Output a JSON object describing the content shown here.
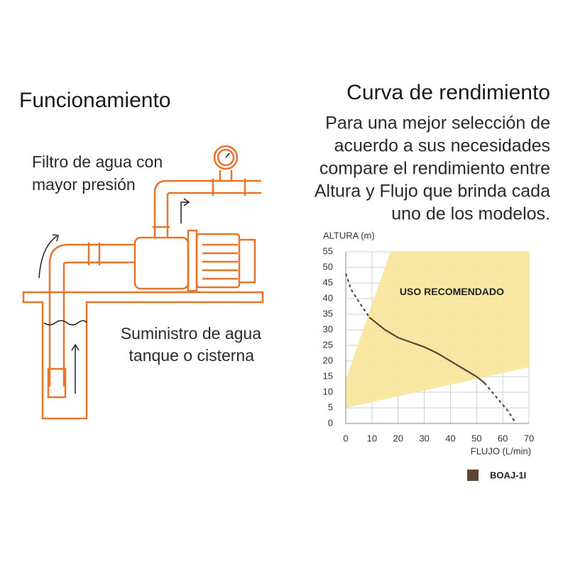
{
  "diagram": {
    "title": "Funcionamiento",
    "label_top": [
      "Filtro de agua con",
      "mayor presión"
    ],
    "label_bottom": [
      "Suministro de agua",
      "tanque o cisterna"
    ]
  },
  "panel": {
    "title": "Curva de rendimiento",
    "text": [
      "Para una mejor selección de",
      "acuerdo a sus necesidades",
      "compare el rendimiento entre",
      "Altura y Flujo que brinda cada",
      "uno de los modelos."
    ]
  },
  "chart_data": {
    "type": "line",
    "y_label": "ALTURA (m)",
    "x_label": "FLUJO (L/min)",
    "xlim": [
      0,
      70
    ],
    "xticks": [
      0,
      10,
      20,
      30,
      40,
      50,
      60,
      70
    ],
    "ylim": [
      0,
      55
    ],
    "yticks": [
      0,
      5,
      10,
      15,
      20,
      25,
      30,
      35,
      40,
      45,
      50,
      55
    ],
    "grid": true,
    "region": {
      "label": "USO RECOMENDADO",
      "color": "#f7e59a",
      "x": [
        0,
        0,
        17,
        70,
        70
      ],
      "y": [
        5,
        14,
        55,
        55,
        18
      ]
    },
    "series": [
      {
        "name": "BOAJ-1I",
        "color": "#5b4535",
        "x": [
          0,
          2,
          5,
          9,
          15,
          20,
          25,
          30,
          35,
          40,
          45,
          50,
          53,
          58,
          62,
          65
        ],
        "values": [
          48,
          43,
          39,
          34,
          30,
          27.5,
          26,
          24.5,
          22.5,
          20,
          17.5,
          15,
          13,
          8,
          4,
          0
        ]
      }
    ]
  }
}
